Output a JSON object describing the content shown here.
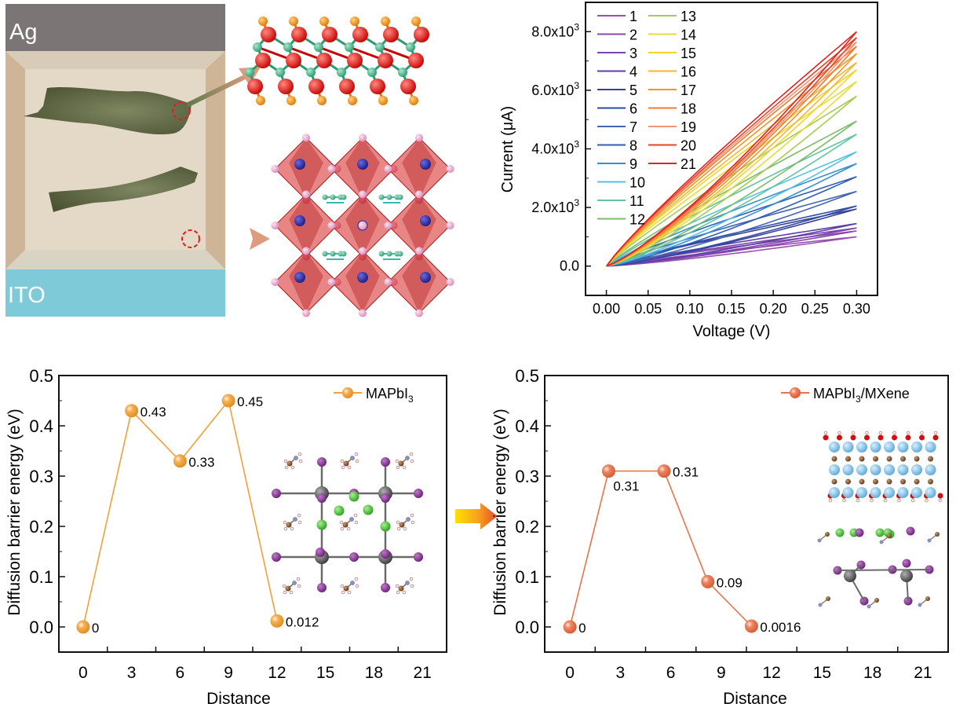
{
  "schematic": {
    "top_electrode_label": "Ag",
    "bottom_electrode_label": "ITO",
    "colors": {
      "ag": "#7b7675",
      "ito": "#7fcad8",
      "medium": "#e4d8c6",
      "wall": "#cfb597",
      "filament": "#5b6340",
      "marker": "#e02020",
      "arrow": "#d99a7c"
    }
  },
  "chart_data": [
    {
      "id": "iv",
      "type": "line",
      "title": "",
      "xlabel": "Voltage (V)",
      "ylabel": "Current (μA)",
      "xlim": [
        -0.025,
        0.325
      ],
      "ylim": [
        -1000,
        9000
      ],
      "xticks": [
        0.0,
        0.05,
        0.1,
        0.15,
        0.2,
        0.25,
        0.3
      ],
      "xtick_labels": [
        "0.00",
        "0.05",
        "0.10",
        "0.15",
        "0.20",
        "0.25",
        "0.30"
      ],
      "yticks": [
        0,
        2000,
        4000,
        6000,
        8000
      ],
      "ytick_labels": [
        {
          "mantissa": "0.0",
          "exp": ""
        },
        {
          "mantissa": "2.0x10",
          "exp": "3"
        },
        {
          "mantissa": "4.0x10",
          "exp": "3"
        },
        {
          "mantissa": "6.0x10",
          "exp": "3"
        },
        {
          "mantissa": "8.0x10",
          "exp": "3"
        }
      ],
      "grid": false,
      "legend_position": "top-left",
      "legend_columns": 2,
      "note": "each cycle sweeps 0 → 0.30 V → 0 V; values are current in μA at 0.30 V (approximate)",
      "series": [
        {
          "name": "1",
          "color": "#9b4fb0",
          "i_max": 1000
        },
        {
          "name": "2",
          "color": "#8a47ad",
          "i_max": 1200
        },
        {
          "name": "3",
          "color": "#7a45ac",
          "i_max": 1300
        },
        {
          "name": "4",
          "color": "#5c3fa6",
          "i_max": 1450
        },
        {
          "name": "5",
          "color": "#3c3f9a",
          "i_max": 1950
        },
        {
          "name": "6",
          "color": "#2d4ea3",
          "i_max": 2050
        },
        {
          "name": "7",
          "color": "#4566b3",
          "i_max": 2550
        },
        {
          "name": "8",
          "color": "#2f5eb5",
          "i_max": 3050
        },
        {
          "name": "9",
          "color": "#3a8ed2",
          "i_max": 3500
        },
        {
          "name": "10",
          "color": "#57c1e0",
          "i_max": 3900
        },
        {
          "name": "11",
          "color": "#64c4a0",
          "i_max": 4500
        },
        {
          "name": "12",
          "color": "#79bc6a",
          "i_max": 4950
        },
        {
          "name": "13",
          "color": "#a5cc52",
          "i_max": 5800
        },
        {
          "name": "14",
          "color": "#e3dc3a",
          "i_max": 6300
        },
        {
          "name": "15",
          "color": "#f2d52c",
          "i_max": 6700
        },
        {
          "name": "16",
          "color": "#f6b533",
          "i_max": 6950
        },
        {
          "name": "17",
          "color": "#f39428",
          "i_max": 7250
        },
        {
          "name": "18",
          "color": "#f07a2e",
          "i_max": 7500
        },
        {
          "name": "19",
          "color": "#f39378",
          "i_max": 7650
        },
        {
          "name": "20",
          "color": "#e8442a",
          "i_max": 7800
        },
        {
          "name": "21",
          "color": "#e0231f",
          "i_max": 8000
        }
      ]
    },
    {
      "id": "barrier-mapbi3",
      "type": "line",
      "title": "",
      "xlabel": "Distance",
      "ylabel": "Diffusion barrier energy (eV)",
      "xlim": [
        -1.5,
        22.5
      ],
      "ylim": [
        -0.05,
        0.5
      ],
      "xticks": [
        0,
        3,
        6,
        9,
        12,
        15,
        18,
        21
      ],
      "yticks": [
        0.0,
        0.1,
        0.2,
        0.3,
        0.4,
        0.5
      ],
      "ytick_labels": [
        "0.0",
        "0.1",
        "0.2",
        "0.3",
        "0.4",
        "0.5"
      ],
      "grid": false,
      "legend_position": "top-right",
      "series": [
        {
          "name_main": "MAPbI",
          "name_sub": "3",
          "name_suffix": "",
          "color": "#f0a03c",
          "x": [
            0,
            3,
            6,
            9,
            12
          ],
          "y": [
            0,
            0.43,
            0.33,
            0.45,
            0.012
          ],
          "labels": [
            "0",
            "0.43",
            "0.33",
            "0.45",
            "0.012"
          ]
        }
      ]
    },
    {
      "id": "barrier-mapbi3-mxene",
      "type": "line",
      "title": "",
      "xlabel": "Distance",
      "ylabel": "Diffusion barrier energy (eV)",
      "xlim": [
        -1.5,
        22.5
      ],
      "ylim": [
        -0.05,
        0.5
      ],
      "xticks": [
        0,
        3,
        6,
        9,
        12,
        15,
        18,
        21
      ],
      "yticks": [
        0.0,
        0.1,
        0.2,
        0.3,
        0.4,
        0.5
      ],
      "ytick_labels": [
        "0.0",
        "0.1",
        "0.2",
        "0.3",
        "0.4",
        "0.5"
      ],
      "grid": false,
      "legend_position": "top-right",
      "series": [
        {
          "name_main": "MAPbI",
          "name_sub": "3",
          "name_suffix": "/MXene",
          "color": "#e8744e",
          "x": [
            0,
            2.3,
            5.6,
            8.2,
            10.8
          ],
          "y": [
            0,
            0.31,
            0.31,
            0.09,
            0.0016
          ],
          "labels": [
            "0",
            "0.31",
            "0.31",
            "0.09",
            "0.0016"
          ]
        }
      ]
    }
  ]
}
